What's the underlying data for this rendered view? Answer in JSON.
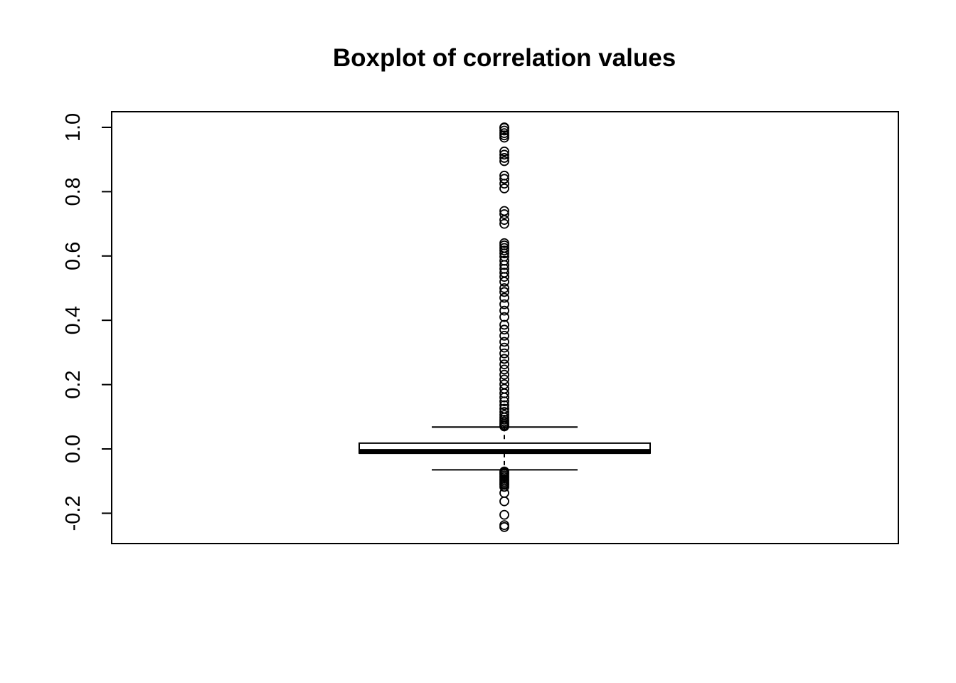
{
  "chart_data": {
    "type": "boxplot",
    "title": "Boxplot of correlation values",
    "xlabel": "",
    "ylabel": "",
    "ylim": [
      -0.25,
      1.05
    ],
    "y_ticks": [
      -0.2,
      0.0,
      0.2,
      0.4,
      0.6,
      0.8,
      1.0
    ],
    "y_tick_labels": [
      "-0.2",
      "0.0",
      "0.2",
      "0.4",
      "0.6",
      "0.8",
      "1.0"
    ],
    "grid": false,
    "box": {
      "lower_whisker": -0.065,
      "q1": -0.013,
      "median": -0.008,
      "q3": 0.018,
      "upper_whisker": 0.068
    },
    "outliers": [
      -0.243,
      -0.237,
      -0.205,
      -0.163,
      -0.137,
      -0.118,
      -0.112,
      -0.108,
      -0.103,
      -0.098,
      -0.093,
      -0.088,
      -0.083,
      -0.078,
      -0.074,
      -0.07,
      0.07,
      0.074,
      0.079,
      0.085,
      0.091,
      0.098,
      0.106,
      0.115,
      0.125,
      0.136,
      0.148,
      0.16,
      0.173,
      0.187,
      0.201,
      0.216,
      0.231,
      0.247,
      0.263,
      0.28,
      0.297,
      0.315,
      0.333,
      0.352,
      0.371,
      0.386,
      0.41,
      0.43,
      0.45,
      0.47,
      0.488,
      0.5,
      0.52,
      0.535,
      0.548,
      0.56,
      0.572,
      0.585,
      0.598,
      0.608,
      0.617,
      0.625,
      0.633,
      0.64,
      0.7,
      0.712,
      0.73,
      0.74,
      0.81,
      0.825,
      0.84,
      0.85,
      0.895,
      0.905,
      0.915,
      0.925,
      0.968,
      0.975,
      0.982,
      0.99,
      0.998,
      1.0
    ]
  }
}
